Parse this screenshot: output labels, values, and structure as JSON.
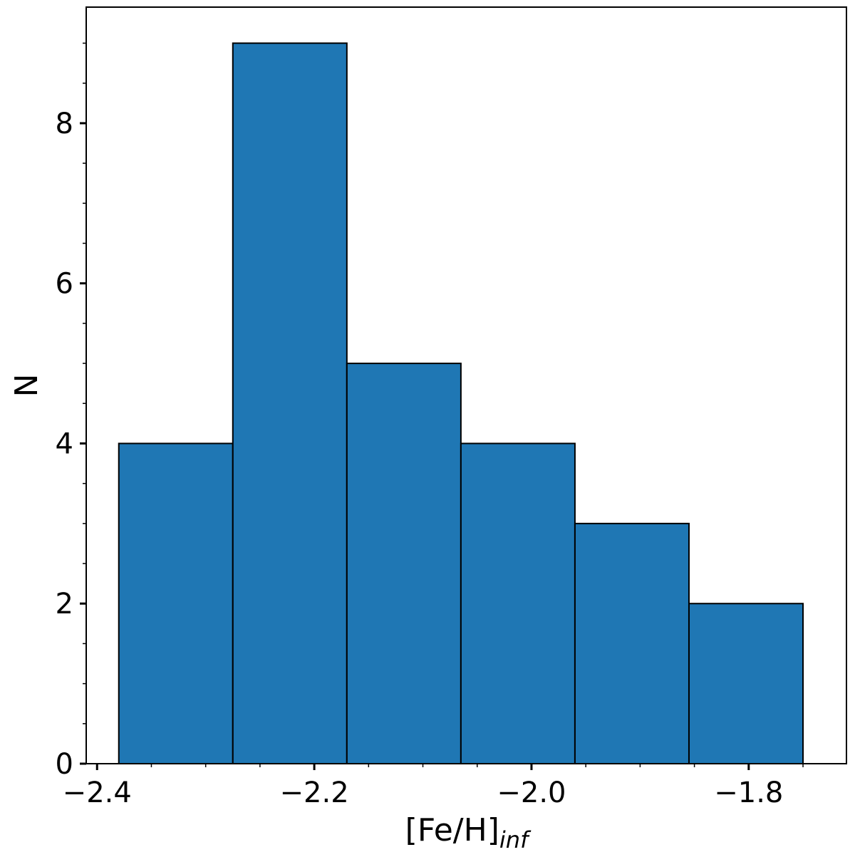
{
  "chart_data": {
    "type": "bar",
    "bins": [
      {
        "x0": -2.38,
        "x1": -2.275,
        "count": 4
      },
      {
        "x0": -2.275,
        "x1": -2.17,
        "count": 9
      },
      {
        "x0": -2.17,
        "x1": -2.065,
        "count": 5
      },
      {
        "x0": -2.065,
        "x1": -1.96,
        "count": 4
      },
      {
        "x0": -1.96,
        "x1": -1.855,
        "count": 3
      },
      {
        "x0": -1.855,
        "x1": -1.75,
        "count": 2
      }
    ],
    "xlabel_main": "[Fe/H]",
    "xlabel_sub": "inf",
    "ylabel": "N",
    "xlim": [
      -2.41,
      -1.71
    ],
    "ylim": [
      0,
      9.45
    ],
    "x_ticks": [
      {
        "value": -2.4,
        "label": "−2.4"
      },
      {
        "value": -2.2,
        "label": "−2.2"
      },
      {
        "value": -2.0,
        "label": "−2.0"
      },
      {
        "value": -1.8,
        "label": "−1.8"
      }
    ],
    "x_minor_ticks": [
      -2.35,
      -2.3,
      -2.25,
      -2.15,
      -2.1,
      -2.05,
      -1.95,
      -1.9,
      -1.85,
      -1.75
    ],
    "y_ticks": [
      {
        "value": 0,
        "label": "0"
      },
      {
        "value": 2,
        "label": "2"
      },
      {
        "value": 4,
        "label": "4"
      },
      {
        "value": 6,
        "label": "6"
      },
      {
        "value": 8,
        "label": "8"
      }
    ],
    "y_minor_ticks": [
      0.5,
      1,
      1.5,
      2.5,
      3,
      3.5,
      4.5,
      5,
      5.5,
      6.5,
      7,
      7.5,
      8.5,
      9
    ],
    "grid": false,
    "bar_color": "#1f77b4",
    "edge_color": "#000000"
  }
}
